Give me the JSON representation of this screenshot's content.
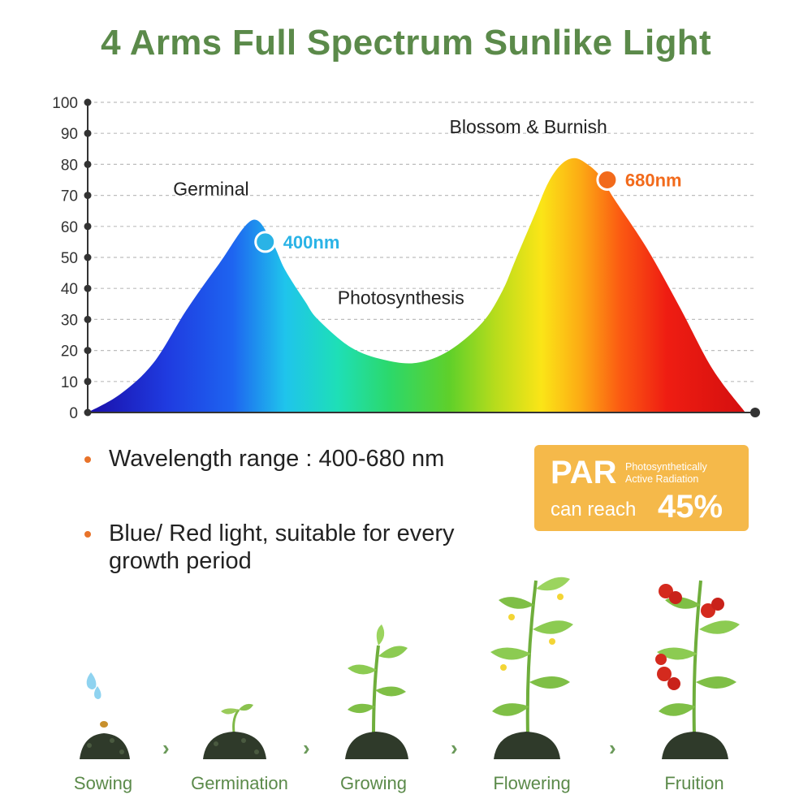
{
  "header": {
    "title": "4 Arms Full Spectrum Sunlike Light"
  },
  "chart_data": {
    "type": "area",
    "title": "4 Arms Full Spectrum Sunlike Light",
    "xlabel": "",
    "ylabel": "",
    "ylim": [
      0,
      100
    ],
    "yticks": [
      0,
      10,
      20,
      30,
      40,
      50,
      60,
      70,
      80,
      90,
      100
    ],
    "grid": true,
    "series": [
      {
        "x": [
          0,
          5,
          10,
          15,
          20,
          25,
          28,
          30,
          33,
          35,
          40,
          45,
          50,
          55,
          60,
          63,
          65,
          68,
          70,
          72,
          74,
          76,
          78,
          80,
          85,
          90,
          95,
          100
        ],
        "y": [
          0,
          6,
          16,
          33,
          48,
          62,
          55,
          46,
          36,
          30,
          21,
          17,
          16,
          20,
          29,
          39,
          49,
          64,
          74,
          80,
          82,
          80,
          76,
          69,
          53,
          34,
          14,
          0
        ]
      }
    ],
    "markers": [
      {
        "label": "400nm",
        "x": 27,
        "y": 55,
        "color": "#2ab3e6"
      },
      {
        "label": "680nm",
        "x": 79,
        "y": 75,
        "color": "#f26a1b"
      }
    ],
    "annotations": [
      {
        "text": "Germinal",
        "x": 13,
        "y": 70
      },
      {
        "text": "Photosynthesis",
        "x": 38,
        "y": 35
      },
      {
        "text": "Blossom & Burnish",
        "x": 55,
        "y": 90
      }
    ]
  },
  "features": [
    {
      "text": "Wavelength range : 400-680 nm"
    },
    {
      "text": "Blue/ Red light, suitable for every growth period"
    }
  ],
  "par": {
    "word": "PAR",
    "desc_line1": "Photosynthetically",
    "desc_line2": "Active Radiation",
    "reach": "can reach",
    "percent": "45%"
  },
  "stages": [
    {
      "label": "Sowing",
      "icon": "sowing-icon"
    },
    {
      "label": "Germination",
      "icon": "germination-icon"
    },
    {
      "label": "Growing",
      "icon": "growing-icon"
    },
    {
      "label": "Flowering",
      "icon": "flowering-icon"
    },
    {
      "label": "Fruition",
      "icon": "fruition-icon"
    }
  ],
  "arrow_glyph": "›",
  "colors": {
    "title": "#5b8a4a",
    "bullet": "#e8732a",
    "par_bg": "#f5b94a"
  }
}
